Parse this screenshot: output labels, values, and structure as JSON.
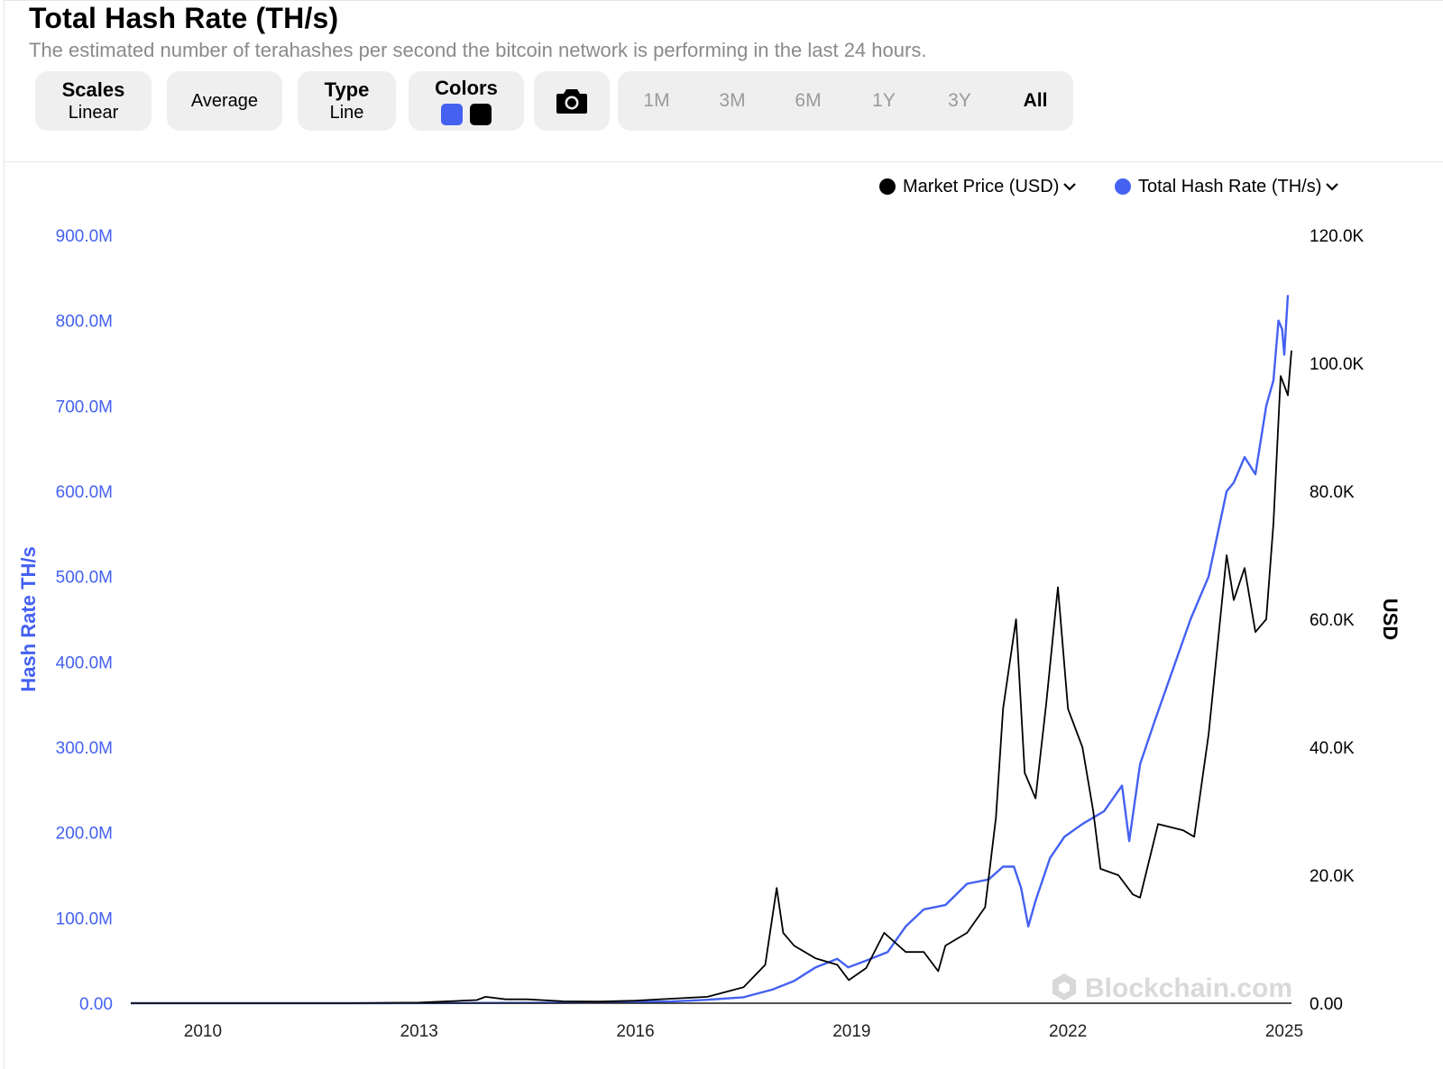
{
  "header": {
    "title": "Total Hash Rate (TH/s)",
    "subtitle": "The estimated number of terahashes per second the bitcoin network is performing in the last 24 hours."
  },
  "toolbar": {
    "scales": {
      "label": "Scales",
      "value": "Linear"
    },
    "average": {
      "label": "Average"
    },
    "type": {
      "label": "Type",
      "value": "Line"
    },
    "colors": {
      "label": "Colors",
      "swatches": [
        "#4461f2",
        "#000000"
      ]
    },
    "camera_icon": "camera-icon",
    "ranges": [
      "1M",
      "3M",
      "6M",
      "1Y",
      "3Y",
      "All"
    ],
    "active_range": "All"
  },
  "legend": {
    "market_price": "Market Price (USD)",
    "hash_rate": "Total Hash Rate (TH/s)",
    "chevron_icon": "chevron-down-icon"
  },
  "watermark": "Blockchain.com",
  "chart_data": {
    "type": "line",
    "x_ticks": [
      "2010",
      "2013",
      "2016",
      "2019",
      "2022",
      "2025"
    ],
    "xlim": [
      2009.0,
      2025.1
    ],
    "y_left": {
      "label": "Hash Rate TH/s",
      "ticks": [
        "0.00",
        "100.0M",
        "200.0M",
        "300.0M",
        "400.0M",
        "500.0M",
        "600.0M",
        "700.0M",
        "800.0M",
        "900.0M"
      ],
      "lim": [
        0,
        900
      ],
      "unit": "M",
      "color": "#4461f2"
    },
    "y_right": {
      "label": "USD",
      "ticks": [
        "0.00",
        "20.0K",
        "40.0K",
        "60.0K",
        "80.0K",
        "100.0K",
        "120.0K"
      ],
      "lim": [
        0,
        120
      ],
      "unit": "K",
      "color": "#000000"
    },
    "series": [
      {
        "name": "Total Hash Rate (TH/s)",
        "axis": "left",
        "color": "#4461f2",
        "x": [
          2009.0,
          2010.0,
          2012.0,
          2014.0,
          2015.0,
          2016.0,
          2016.5,
          2017.0,
          2017.5,
          2017.9,
          2018.2,
          2018.5,
          2018.8,
          2018.95,
          2019.2,
          2019.5,
          2019.75,
          2020.0,
          2020.3,
          2020.6,
          2020.9,
          2021.1,
          2021.25,
          2021.35,
          2021.45,
          2021.55,
          2021.75,
          2021.95,
          2022.2,
          2022.5,
          2022.75,
          2022.85,
          2023.0,
          2023.2,
          2023.45,
          2023.7,
          2023.95,
          2024.2,
          2024.3,
          2024.45,
          2024.6,
          2024.75,
          2024.85,
          2024.92,
          2024.97,
          2025.0,
          2025.05
        ],
        "values": [
          0,
          0,
          0.02,
          0.3,
          0.5,
          1.5,
          2,
          4,
          7,
          16,
          26,
          42,
          52,
          42,
          50,
          60,
          90,
          110,
          115,
          140,
          145,
          160,
          160,
          135,
          90,
          120,
          170,
          195,
          210,
          225,
          255,
          190,
          280,
          330,
          390,
          450,
          500,
          600,
          610,
          640,
          620,
          700,
          730,
          800,
          790,
          760,
          830
        ]
      },
      {
        "name": "Market Price (USD)",
        "axis": "right",
        "color": "#000000",
        "x": [
          2009.0,
          2010.0,
          2012.0,
          2013.0,
          2013.8,
          2013.92,
          2014.2,
          2014.5,
          2015.0,
          2015.5,
          2016.0,
          2016.5,
          2017.0,
          2017.5,
          2017.8,
          2017.96,
          2018.05,
          2018.2,
          2018.5,
          2018.8,
          2018.96,
          2019.2,
          2019.45,
          2019.55,
          2019.75,
          2020.0,
          2020.2,
          2020.3,
          2020.6,
          2020.85,
          2021.0,
          2021.1,
          2021.28,
          2021.4,
          2021.55,
          2021.7,
          2021.86,
          2022.0,
          2022.2,
          2022.35,
          2022.45,
          2022.7,
          2022.9,
          2023.0,
          2023.25,
          2023.6,
          2023.75,
          2023.95,
          2024.2,
          2024.3,
          2024.45,
          2024.6,
          2024.75,
          2024.85,
          2024.95,
          2025.05,
          2025.1
        ],
        "values": [
          0,
          0,
          0,
          0.1,
          0.5,
          1.0,
          0.6,
          0.6,
          0.3,
          0.25,
          0.4,
          0.7,
          1.0,
          2.5,
          6,
          18,
          11,
          9,
          7,
          6,
          3.6,
          5.5,
          11,
          10,
          8,
          8,
          5,
          9,
          11,
          15,
          29,
          46,
          60,
          36,
          32,
          47,
          65,
          46,
          40,
          30,
          21,
          20,
          17,
          16.5,
          28,
          27,
          26,
          42,
          70,
          63,
          68,
          58,
          60,
          75,
          98,
          95,
          102
        ]
      }
    ]
  }
}
